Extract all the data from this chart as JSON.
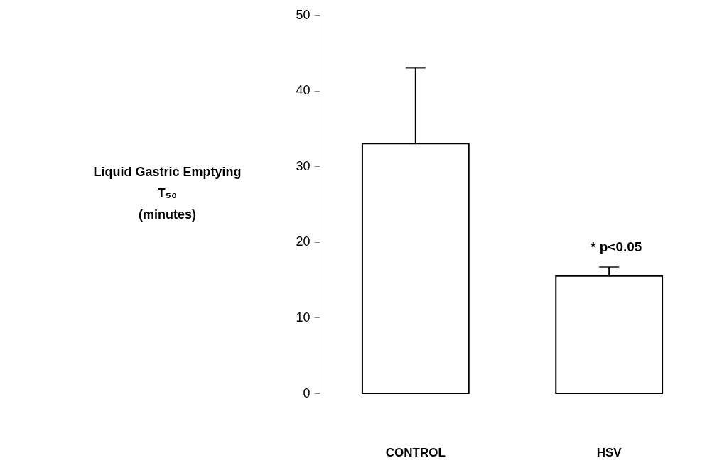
{
  "chart_data": {
    "type": "bar",
    "ylabel": "Liquid Gastric Emptying T₅₀ (minutes)",
    "categories": [
      "CONTROL",
      "HSV"
    ],
    "series": [
      {
        "color": "#ffffff",
        "values": [
          33,
          15.5
        ],
        "errors": [
          [
            33,
            43
          ],
          [
            15.5,
            16.7
          ]
        ]
      }
    ],
    "ylim": [
      0,
      50
    ],
    "yticks": [
      0,
      10,
      20,
      30,
      40,
      50
    ],
    "grid": false,
    "annotations": [
      "* p<0.05"
    ]
  }
}
